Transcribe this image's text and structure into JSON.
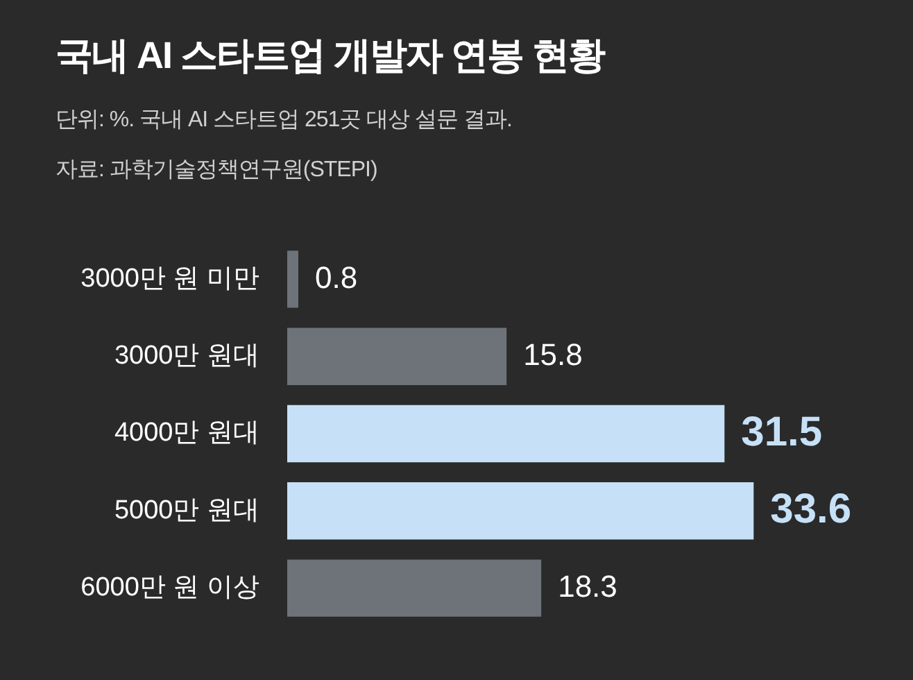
{
  "chart_data": {
    "type": "bar",
    "orientation": "horizontal",
    "title": "국내 AI 스타트업 개발자 연봉 현황",
    "subtitle": "단위: %. 국내 AI 스타트업 251곳 대상 설문 결과.",
    "annotations": [
      "자료: 과학기술정책연구원(STEPI)"
    ],
    "categories": [
      "3000만 원 미만",
      "3000만 원대",
      "4000만 원대",
      "5000만 원대",
      "6000만 원 이상"
    ],
    "values": [
      0.8,
      15.8,
      31.5,
      33.6,
      18.3
    ],
    "colors": [
      "#6d7379",
      "#6d7379",
      "#c6e1f7",
      "#c6e1f7",
      "#6d7379"
    ],
    "data_labels": true
  }
}
